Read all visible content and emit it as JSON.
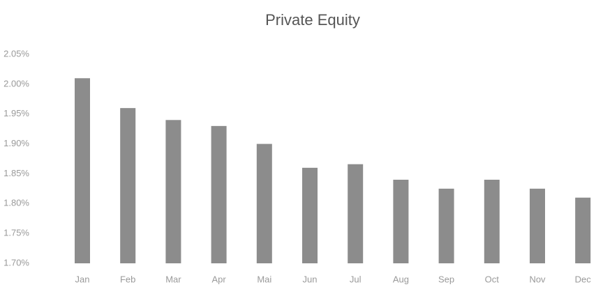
{
  "chart_data": {
    "type": "bar",
    "title": "Private Equity",
    "categories": [
      "Jan",
      "Feb",
      "Mar",
      "Apr",
      "Mai",
      "Jun",
      "Jul",
      "Aug",
      "Sep",
      "Oct",
      "Nov",
      "Dec"
    ],
    "values": [
      2.01,
      1.96,
      1.94,
      1.93,
      1.9,
      1.86,
      1.866,
      1.84,
      1.825,
      1.84,
      1.825,
      1.81
    ],
    "color": "#8c8c8c",
    "ylim": [
      1.7,
      2.05
    ],
    "yticks": [
      {
        "value": 1.7,
        "label": "1.70%"
      },
      {
        "value": 1.75,
        "label": "1.75%"
      },
      {
        "value": 1.8,
        "label": "1.80%"
      },
      {
        "value": 1.85,
        "label": "1.85%"
      },
      {
        "value": 1.9,
        "label": "1.90%"
      },
      {
        "value": 1.95,
        "label": "1.95%"
      },
      {
        "value": 2.0,
        "label": "2.00%"
      },
      {
        "value": 2.05,
        "label": "2.05%"
      }
    ],
    "grid": false
  }
}
